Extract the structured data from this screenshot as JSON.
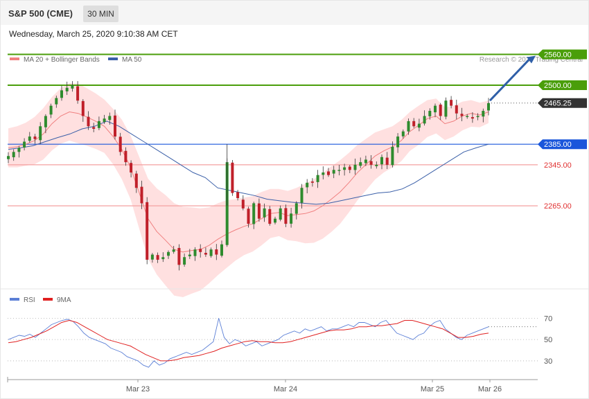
{
  "header": {
    "instrument": "S&P 500 (CME)",
    "timeframe": "30 MIN"
  },
  "timestamp": "Wednesday, March 25, 2020 9:10:38 AM CET",
  "legend": {
    "ma20_label": "MA 20 + Bollinger Bands",
    "ma50_label": "MA 50",
    "ma20_color": "#f08080",
    "ma50_color": "#3a5fa8"
  },
  "credit": "Research © 2020 Trading Central",
  "rsi_legend": {
    "rsi_label": "RSI",
    "ma9_label": "9MA",
    "rsi_color": "#5b7fd6",
    "ma9_color": "#e02020"
  },
  "chart_data": [
    {
      "type": "candlestick",
      "instrument": "S&P 500 (CME)",
      "interval": "30 MIN",
      "y_range": [
        2110,
        2585
      ],
      "x_ticks": [
        "Mar 23",
        "Mar 24",
        "Mar 25",
        "Mar 26"
      ],
      "levels": [
        {
          "value": 2560.0,
          "label": "2560.00",
          "kind": "resistance",
          "color": "#4a9e0a"
        },
        {
          "value": 2500.0,
          "label": "2500.00",
          "kind": "resistance",
          "color": "#4a9e0a"
        },
        {
          "value": 2465.25,
          "label": "2465.25",
          "kind": "last-price",
          "color": "#333333"
        },
        {
          "value": 2385.0,
          "label": "2385.00",
          "kind": "pivot",
          "color": "#1a56db"
        },
        {
          "value": 2345.0,
          "label": "2345.00",
          "kind": "support",
          "color": "#e03030"
        },
        {
          "value": 2265.0,
          "label": "2265.00",
          "kind": "support",
          "color": "#e03030"
        }
      ],
      "close_path": [
        2362,
        2370,
        2378,
        2390,
        2400,
        2395,
        2420,
        2440,
        2460,
        2475,
        2490,
        2495,
        2500,
        2470,
        2440,
        2420,
        2415,
        2430,
        2435,
        2440,
        2400,
        2370,
        2350,
        2330,
        2300,
        2270,
        2160,
        2170,
        2160,
        2165,
        2175,
        2180,
        2150,
        2165,
        2170,
        2180,
        2175,
        2170,
        2180,
        2170,
        2190,
        2350,
        2290,
        2280,
        2260,
        2230,
        2270,
        2240,
        2260,
        2230,
        2240,
        2260,
        2230,
        2250,
        2270,
        2300,
        2310,
        2310,
        2325,
        2330,
        2325,
        2335,
        2335,
        2340,
        2335,
        2345,
        2350,
        2355,
        2345,
        2345,
        2360,
        2345,
        2380,
        2400,
        2410,
        2430,
        2420,
        2425,
        2440,
        2450,
        2460,
        2440,
        2470,
        2460,
        2445,
        2440,
        2440,
        2435,
        2440,
        2450,
        2465
      ],
      "ma20_path": [
        2378,
        2380,
        2385,
        2392,
        2405,
        2425,
        2440,
        2448,
        2445,
        2438,
        2430,
        2420,
        2400,
        2375,
        2340,
        2290,
        2240,
        2215,
        2198,
        2180,
        2175,
        2178,
        2180,
        2188,
        2200,
        2210,
        2218,
        2225,
        2230,
        2240,
        2250,
        2252,
        2246,
        2248,
        2250,
        2255,
        2265,
        2278,
        2292,
        2310,
        2330,
        2346,
        2362,
        2372,
        2380,
        2392,
        2410,
        2422,
        2435,
        2440,
        2425,
        2430,
        2440,
        2445,
        2442,
        2448
      ],
      "ma50_path": [
        2375,
        2378,
        2382,
        2390,
        2398,
        2405,
        2415,
        2420,
        2430,
        2420,
        2405,
        2390,
        2375,
        2360,
        2345,
        2330,
        2320,
        2300,
        2295,
        2290,
        2285,
        2278,
        2275,
        2272,
        2270,
        2268,
        2270,
        2275,
        2280,
        2285,
        2290,
        2292,
        2298,
        2310,
        2325,
        2340,
        2355,
        2370,
        2378,
        2385
      ],
      "ma20_label": "MA 20 + Bollinger Bands",
      "ma50_label": "MA 50",
      "projection": {
        "from": 2470,
        "to": 2560,
        "direction": "up"
      }
    },
    {
      "type": "line",
      "series_names": [
        "RSI",
        "9MA"
      ],
      "y_range": [
        15,
        80
      ],
      "reference_levels": [
        {
          "value": 70,
          "label": "70"
        },
        {
          "value": 50,
          "label": "50"
        },
        {
          "value": 30,
          "label": "30"
        }
      ],
      "rsi_path": [
        50,
        52,
        54,
        53,
        55,
        52,
        56,
        60,
        64,
        66,
        68,
        69,
        67,
        62,
        56,
        52,
        50,
        48,
        46,
        42,
        40,
        38,
        34,
        32,
        30,
        26,
        24,
        30,
        26,
        28,
        32,
        34,
        36,
        38,
        36,
        38,
        40,
        44,
        48,
        70,
        52,
        46,
        50,
        48,
        44,
        46,
        48,
        44,
        46,
        48,
        50,
        54,
        56,
        58,
        56,
        60,
        58,
        60,
        62,
        58,
        60,
        60,
        62,
        64,
        62,
        66,
        66,
        64,
        62,
        66,
        68,
        62,
        56,
        54,
        52,
        50,
        54,
        56,
        62,
        66,
        68,
        60,
        56,
        52,
        50,
        54,
        56,
        58,
        60,
        62
      ],
      "ma9_path": [
        47,
        48,
        50,
        52,
        55,
        58,
        62,
        66,
        68,
        66,
        62,
        58,
        54,
        50,
        48,
        46,
        44,
        40,
        36,
        33,
        30,
        30,
        31,
        33,
        34,
        35,
        37,
        39,
        42,
        44,
        46,
        48,
        49,
        48,
        48,
        47,
        47,
        48,
        50,
        52,
        54,
        56,
        58,
        59,
        59,
        60,
        62,
        62,
        63,
        63,
        64,
        65,
        68,
        68,
        66,
        64,
        62,
        60,
        56,
        52,
        52,
        53,
        55,
        56
      ]
    }
  ]
}
